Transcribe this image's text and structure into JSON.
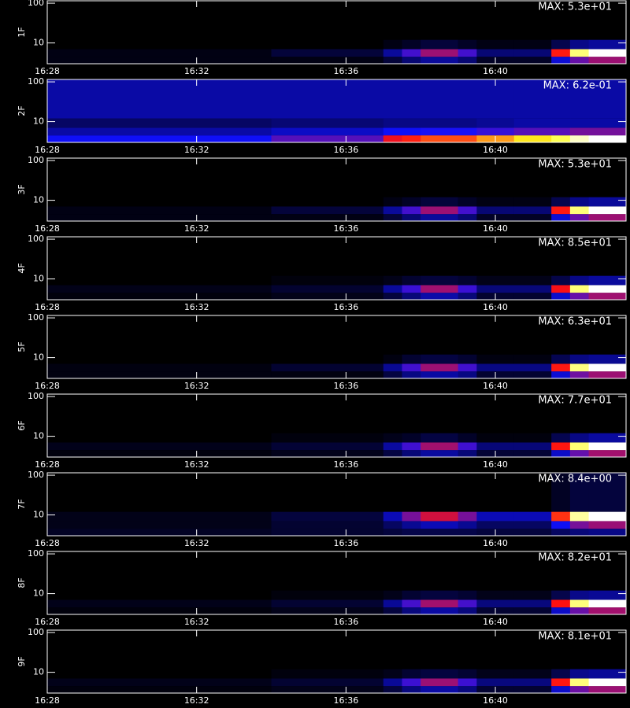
{
  "chart_data": [
    {
      "type": "heatmap",
      "ylabel": "1F",
      "annotation": "MAX: 5.3e+01",
      "ylog": true,
      "xlim": [
        988,
        1003.5
      ],
      "xticks": [
        {
          "value": 988,
          "label": "16:28"
        },
        {
          "value": 992,
          "label": "16:32"
        },
        {
          "value": 996,
          "label": "16:36"
        },
        {
          "value": 1000,
          "label": "16:40"
        }
      ],
      "ylim": [
        3,
        115
      ],
      "yticks": [
        10,
        100
      ],
      "x_bins": [
        988,
        994,
        997,
        997.5,
        998,
        999,
        999.5,
        1000.5,
        1001.5,
        1002,
        1002.5,
        1003.5
      ],
      "y_bins": [
        3,
        4.5,
        7,
        12,
        115
      ],
      "z": [
        [
          1,
          1,
          3,
          6,
          8,
          6,
          2,
          2,
          11,
          18,
          21
        ],
        [
          1,
          3,
          8,
          16,
          21,
          16,
          6,
          6,
          27,
          45,
          53
        ],
        [
          0,
          0,
          1,
          2,
          3,
          2,
          1,
          1,
          4,
          7,
          8
        ],
        [
          0,
          0,
          0,
          0,
          0,
          0,
          0,
          0,
          0,
          0,
          0
        ]
      ],
      "zlim": [
        0,
        53
      ],
      "colormap": [
        "#000000",
        "#1010ff",
        "#ff1010",
        "#ffff20",
        "#ffffff"
      ]
    },
    {
      "type": "heatmap",
      "ylabel": "2F",
      "annotation": "MAX: 6.2e-01",
      "ylog": true,
      "xlim": [
        988,
        1003.5
      ],
      "xticks": [
        {
          "value": 988,
          "label": "16:28"
        },
        {
          "value": 992,
          "label": "16:32"
        },
        {
          "value": 996,
          "label": "16:36"
        },
        {
          "value": 1000,
          "label": "16:40"
        }
      ],
      "ylim": [
        3,
        115
      ],
      "yticks": [
        10,
        100
      ],
      "x_bins": [
        988,
        994,
        997,
        997.5,
        998,
        999,
        999.5,
        1000.5,
        1001.5,
        1002,
        1002.5,
        1003.5
      ],
      "y_bins": [
        3,
        4.5,
        7,
        12,
        115
      ],
      "z": [
        [
          0.15,
          0.2,
          0.3,
          0.32,
          0.35,
          0.35,
          0.4,
          0.45,
          0.5,
          0.58,
          0.62
        ],
        [
          0.1,
          0.12,
          0.15,
          0.15,
          0.16,
          0.16,
          0.18,
          0.2,
          0.2,
          0.22,
          0.22
        ],
        [
          0.06,
          0.07,
          0.08,
          0.08,
          0.08,
          0.08,
          0.09,
          0.1,
          0.1,
          0.1,
          0.1
        ],
        [
          0.1,
          0.1,
          0.1,
          0.1,
          0.1,
          0.1,
          0.1,
          0.1,
          0.1,
          0.1,
          0.1
        ]
      ],
      "zlim": [
        0,
        0.62
      ],
      "colormap": [
        "#000000",
        "#1010ff",
        "#ff1010",
        "#ffff20",
        "#ffffff"
      ]
    },
    {
      "type": "heatmap",
      "ylabel": "3F",
      "annotation": "MAX: 5.3e+01",
      "ylog": true,
      "xlim": [
        988,
        1003.5
      ],
      "xticks": [
        {
          "value": 988,
          "label": "16:28"
        },
        {
          "value": 992,
          "label": "16:32"
        },
        {
          "value": 996,
          "label": "16:36"
        },
        {
          "value": 1000,
          "label": "16:40"
        }
      ],
      "ylim": [
        3,
        115
      ],
      "yticks": [
        10,
        100
      ],
      "x_bins": [
        988,
        994,
        997,
        997.5,
        998,
        999,
        999.5,
        1000.5,
        1001.5,
        1002,
        1002.5,
        1003.5
      ],
      "y_bins": [
        3,
        4.5,
        7,
        12,
        115
      ],
      "z": [
        [
          1,
          1,
          3,
          6,
          8,
          6,
          2,
          2,
          11,
          18,
          21
        ],
        [
          1,
          3,
          8,
          16,
          21,
          16,
          6,
          6,
          27,
          45,
          53
        ],
        [
          0,
          0,
          1,
          2,
          3,
          2,
          1,
          1,
          4,
          7,
          8
        ],
        [
          0,
          0,
          0,
          0,
          0,
          0,
          0,
          0,
          0,
          0,
          0
        ]
      ],
      "zlim": [
        0,
        53
      ],
      "colormap": [
        "#000000",
        "#1010ff",
        "#ff1010",
        "#ffff20",
        "#ffffff"
      ]
    },
    {
      "type": "heatmap",
      "ylabel": "4F",
      "annotation": "MAX: 8.5e+01",
      "ylog": true,
      "xlim": [
        988,
        1003.5
      ],
      "xticks": [
        {
          "value": 988,
          "label": "16:28"
        },
        {
          "value": 992,
          "label": "16:32"
        },
        {
          "value": 996,
          "label": "16:36"
        },
        {
          "value": 1000,
          "label": "16:40"
        }
      ],
      "ylim": [
        3,
        115
      ],
      "yticks": [
        10,
        100
      ],
      "x_bins": [
        988,
        994,
        997,
        997.5,
        998,
        999,
        999.5,
        1000.5,
        1001.5,
        1002,
        1002.5,
        1003.5
      ],
      "y_bins": [
        3,
        4.5,
        7,
        12,
        115
      ],
      "z": [
        [
          1,
          2,
          5,
          10,
          14,
          10,
          4,
          4,
          17,
          29,
          34
        ],
        [
          2,
          4,
          13,
          25,
          34,
          25,
          10,
          10,
          42,
          72,
          85
        ],
        [
          0,
          1,
          2,
          4,
          5,
          4,
          2,
          2,
          6,
          11,
          13
        ],
        [
          0,
          0,
          0,
          0,
          0,
          0,
          0,
          0,
          0,
          0,
          0
        ]
      ],
      "zlim": [
        0,
        85
      ],
      "colormap": [
        "#000000",
        "#1010ff",
        "#ff1010",
        "#ffff20",
        "#ffffff"
      ]
    },
    {
      "type": "heatmap",
      "ylabel": "5F",
      "annotation": "MAX: 6.3e+01",
      "ylog": true,
      "xlim": [
        988,
        1003.5
      ],
      "xticks": [
        {
          "value": 988,
          "label": "16:28"
        },
        {
          "value": 992,
          "label": "16:32"
        },
        {
          "value": 996,
          "label": "16:36"
        },
        {
          "value": 1000,
          "label": "16:40"
        }
      ],
      "ylim": [
        3,
        115
      ],
      "yticks": [
        10,
        100
      ],
      "x_bins": [
        988,
        994,
        997,
        997.5,
        998,
        999,
        999.5,
        1000.5,
        1001.5,
        1002,
        1002.5,
        1003.5
      ],
      "y_bins": [
        3,
        4.5,
        7,
        12,
        115
      ],
      "z": [
        [
          1,
          1,
          4,
          8,
          10,
          8,
          3,
          3,
          13,
          22,
          25
        ],
        [
          1,
          3,
          9,
          19,
          25,
          19,
          8,
          8,
          32,
          54,
          63
        ],
        [
          0,
          0,
          1,
          3,
          4,
          3,
          1,
          1,
          5,
          8,
          9
        ],
        [
          0,
          0,
          0,
          0,
          0,
          0,
          0,
          0,
          0,
          0,
          0
        ]
      ],
      "zlim": [
        0,
        63
      ],
      "colormap": [
        "#000000",
        "#1010ff",
        "#ff1010",
        "#ffff20",
        "#ffffff"
      ]
    },
    {
      "type": "heatmap",
      "ylabel": "6F",
      "annotation": "MAX: 7.7e+01",
      "ylog": true,
      "xlim": [
        988,
        1003.5
      ],
      "xticks": [
        {
          "value": 988,
          "label": "16:28"
        },
        {
          "value": 992,
          "label": "16:32"
        },
        {
          "value": 996,
          "label": "16:36"
        },
        {
          "value": 1000,
          "label": "16:40"
        }
      ],
      "ylim": [
        3,
        115
      ],
      "yticks": [
        10,
        100
      ],
      "x_bins": [
        988,
        994,
        997,
        997.5,
        998,
        999,
        999.5,
        1000.5,
        1001.5,
        1002,
        1002.5,
        1003.5
      ],
      "y_bins": [
        3,
        4.5,
        7,
        12,
        115
      ],
      "z": [
        [
          1,
          2,
          5,
          9,
          12,
          9,
          4,
          4,
          15,
          26,
          31
        ],
        [
          2,
          4,
          12,
          23,
          31,
          23,
          9,
          9,
          39,
          65,
          77
        ],
        [
          0,
          1,
          2,
          3,
          5,
          3,
          1,
          1,
          6,
          10,
          12
        ],
        [
          0,
          0,
          0,
          0,
          0,
          0,
          0,
          0,
          0,
          0,
          0
        ]
      ],
      "zlim": [
        0,
        77
      ],
      "colormap": [
        "#000000",
        "#1010ff",
        "#ff1010",
        "#ffff20",
        "#ffffff"
      ]
    },
    {
      "type": "heatmap",
      "ylabel": "7F",
      "annotation": "MAX: 8.4e+00",
      "ylog": true,
      "xlim": [
        988,
        1003.5
      ],
      "xticks": [
        {
          "value": 988,
          "label": "16:28"
        },
        {
          "value": 992,
          "label": "16:32"
        },
        {
          "value": 996,
          "label": "16:36"
        },
        {
          "value": 1000,
          "label": "16:40"
        }
      ],
      "ylim": [
        3,
        115
      ],
      "yticks": [
        10,
        100
      ],
      "x_bins": [
        988,
        994,
        997,
        997.5,
        998,
        999,
        999.5,
        1000.5,
        1001.5,
        1002,
        1002.5,
        1003.5
      ],
      "y_bins": [
        3,
        4.5,
        7,
        12,
        115
      ],
      "z": [
        [
          0.3,
          0.4,
          0.5,
          0.6,
          0.6,
          0.6,
          0.5,
          0.5,
          0.8,
          1,
          1.1
        ],
        [
          0.2,
          0.4,
          0.8,
          1.2,
          1.5,
          1.2,
          0.8,
          0.8,
          2,
          3,
          3.3
        ],
        [
          0.2,
          0.5,
          1.5,
          3,
          3.8,
          3,
          1.5,
          1.5,
          4.5,
          7.5,
          8.4
        ],
        [
          0,
          0,
          0,
          0,
          0,
          0,
          0,
          0,
          0.3,
          0.5,
          0.5
        ]
      ],
      "zlim": [
        0,
        8.4
      ],
      "colormap": [
        "#000000",
        "#1010ff",
        "#ff1010",
        "#ffff20",
        "#ffffff"
      ]
    },
    {
      "type": "heatmap",
      "ylabel": "8F",
      "annotation": "MAX: 8.2e+01",
      "ylog": true,
      "xlim": [
        988,
        1003.5
      ],
      "xticks": [
        {
          "value": 988,
          "label": "16:28"
        },
        {
          "value": 992,
          "label": "16:32"
        },
        {
          "value": 996,
          "label": "16:36"
        },
        {
          "value": 1000,
          "label": "16:40"
        }
      ],
      "ylim": [
        3,
        115
      ],
      "yticks": [
        10,
        100
      ],
      "x_bins": [
        988,
        994,
        997,
        997.5,
        998,
        999,
        999.5,
        1000.5,
        1001.5,
        1002,
        1002.5,
        1003.5
      ],
      "y_bins": [
        3,
        4.5,
        7,
        12,
        115
      ],
      "z": [
        [
          1,
          2,
          5,
          10,
          13,
          10,
          4,
          4,
          16,
          28,
          33
        ],
        [
          2,
          4,
          12,
          25,
          33,
          25,
          10,
          10,
          41,
          70,
          82
        ],
        [
          0,
          1,
          2,
          4,
          5,
          4,
          2,
          2,
          6,
          11,
          12
        ],
        [
          0,
          0,
          0,
          0,
          0,
          0,
          0,
          0,
          0,
          0,
          0
        ]
      ],
      "zlim": [
        0,
        82
      ],
      "colormap": [
        "#000000",
        "#1010ff",
        "#ff1010",
        "#ffff20",
        "#ffffff"
      ]
    },
    {
      "type": "heatmap",
      "ylabel": "9F",
      "annotation": "MAX: 8.1e+01",
      "ylog": true,
      "xlim": [
        988,
        1003.5
      ],
      "xticks": [
        {
          "value": 988,
          "label": "16:28"
        },
        {
          "value": 992,
          "label": "16:32"
        },
        {
          "value": 996,
          "label": "16:36"
        },
        {
          "value": 1000,
          "label": "16:40"
        }
      ],
      "ylim": [
        3,
        115
      ],
      "yticks": [
        10,
        100
      ],
      "x_bins": [
        988,
        994,
        997,
        997.5,
        998,
        999,
        999.5,
        1000.5,
        1001.5,
        1002,
        1002.5,
        1003.5
      ],
      "y_bins": [
        3,
        4.5,
        7,
        12,
        115
      ],
      "z": [
        [
          1,
          2,
          5,
          10,
          13,
          10,
          4,
          4,
          16,
          28,
          32
        ],
        [
          2,
          4,
          12,
          24,
          32,
          24,
          10,
          10,
          41,
          69,
          81
        ],
        [
          0,
          1,
          2,
          4,
          5,
          4,
          2,
          2,
          6,
          11,
          12
        ],
        [
          0,
          0,
          0,
          0,
          0,
          0,
          0,
          0,
          0,
          0,
          0
        ]
      ],
      "zlim": [
        0,
        81
      ],
      "colormap": [
        "#000000",
        "#1010ff",
        "#ff1010",
        "#ffff20",
        "#ffffff"
      ]
    }
  ]
}
